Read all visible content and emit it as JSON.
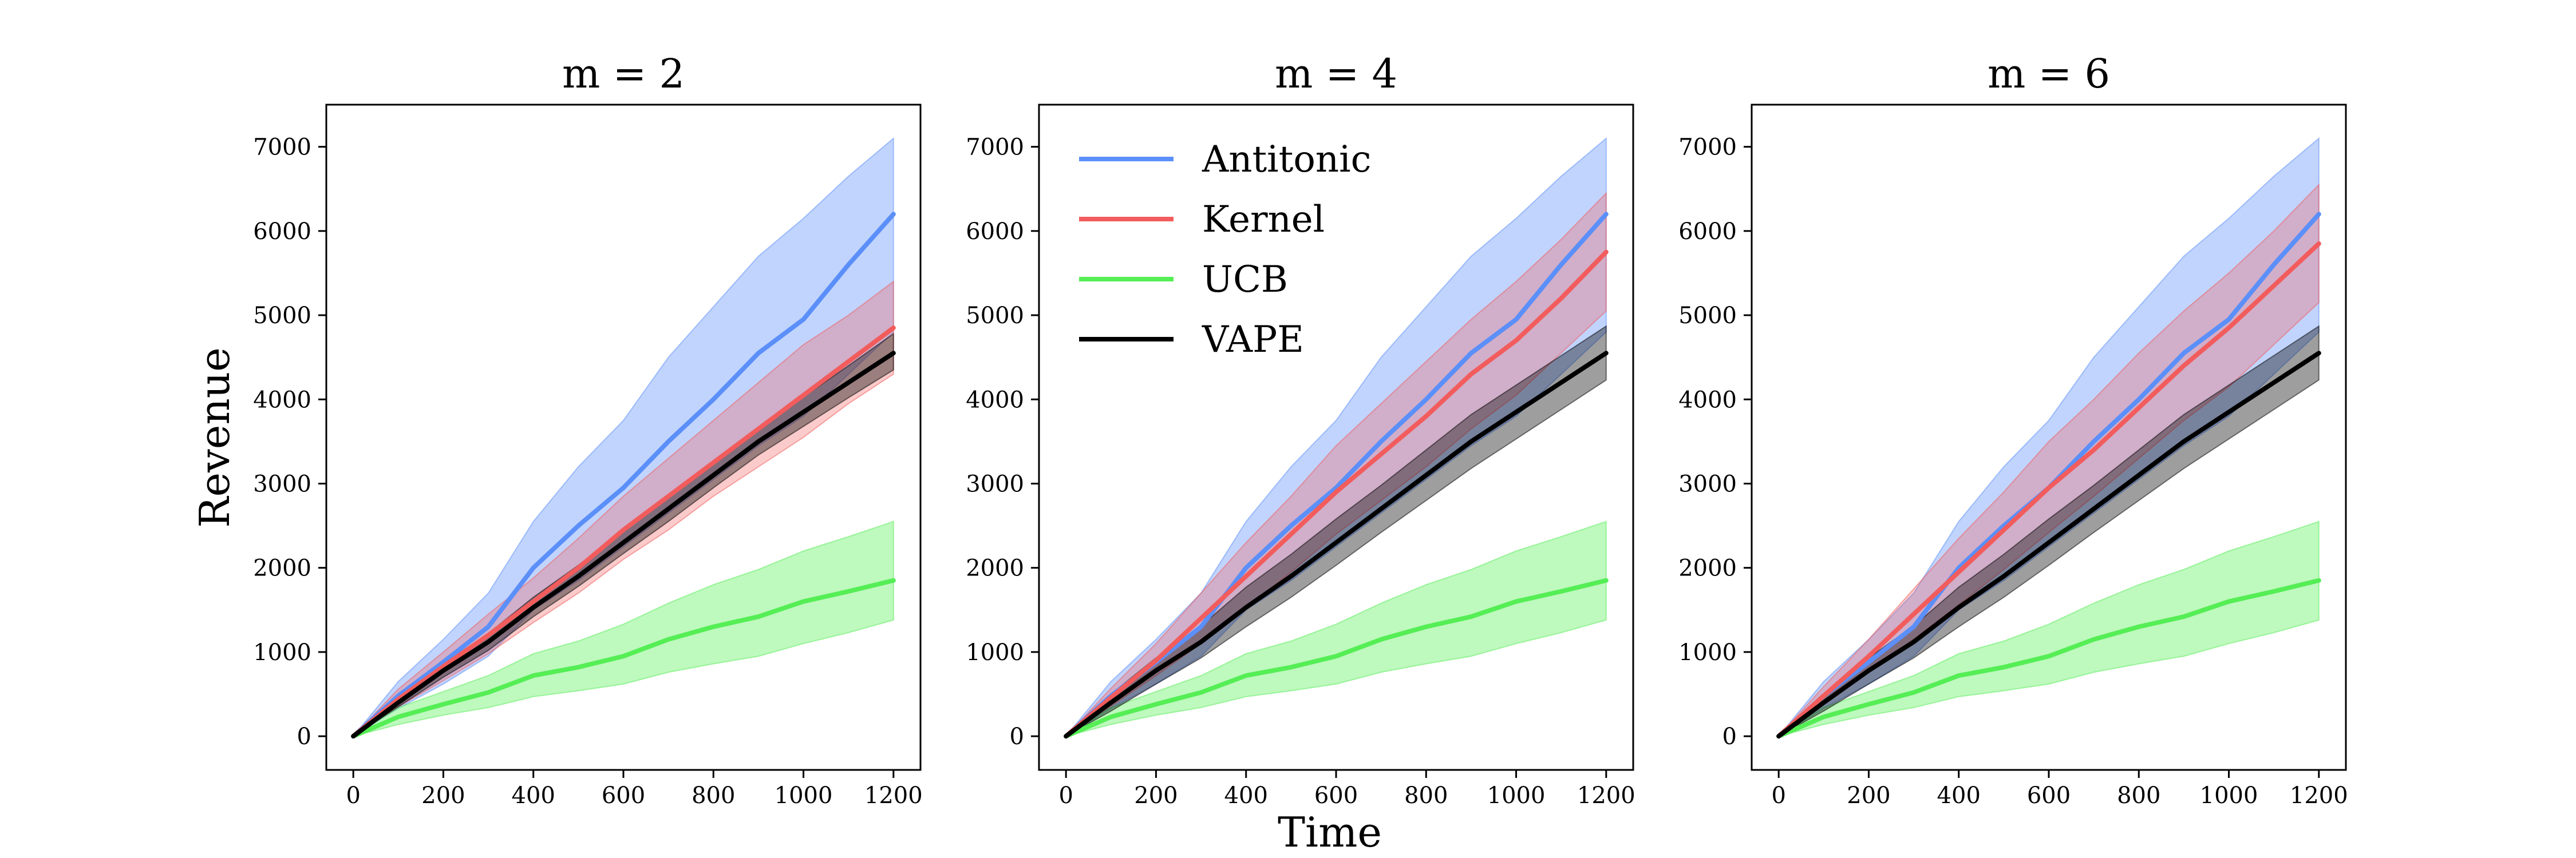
{
  "figure": {
    "xlabel": "Time",
    "ylabel": "Revenue"
  },
  "legend": {
    "position": "upper-left of middle panel",
    "entries": [
      {
        "name": "Antitonic",
        "color": "#5b8ff9"
      },
      {
        "name": "Kernel",
        "color": "#f25c5c"
      },
      {
        "name": "UCB",
        "color": "#55ee55"
      },
      {
        "name": "VAPE",
        "color": "#000000"
      }
    ]
  },
  "chart_data": [
    {
      "type": "line",
      "title": "m = 2",
      "xlabel": "Time",
      "ylabel": "Revenue",
      "xlim": [
        -60,
        1260
      ],
      "ylim": [
        -400,
        7500
      ],
      "xticks": [
        0,
        200,
        400,
        600,
        800,
        1000,
        1200
      ],
      "yticks": [
        0,
        1000,
        2000,
        3000,
        4000,
        5000,
        6000,
        7000
      ],
      "x": [
        0,
        100,
        200,
        300,
        400,
        500,
        600,
        700,
        800,
        900,
        1000,
        1100,
        1200
      ],
      "series": [
        {
          "name": "Antitonic",
          "color": "#5b8ff9",
          "values": [
            0,
            480,
            880,
            1300,
            2000,
            2500,
            2950,
            3500,
            4000,
            4550,
            4950,
            5600,
            6200
          ],
          "lower": [
            0,
            330,
            620,
            950,
            1500,
            1850,
            2250,
            2650,
            3050,
            3450,
            3800,
            4300,
            4800
          ],
          "upper": [
            0,
            650,
            1150,
            1700,
            2550,
            3200,
            3750,
            4500,
            5100,
            5700,
            6150,
            6650,
            7100
          ]
        },
        {
          "name": "Kernel",
          "color": "#f25c5c",
          "values": [
            0,
            440,
            830,
            1200,
            1600,
            2000,
            2450,
            2850,
            3250,
            3650,
            4050,
            4450,
            4850
          ],
          "lower": [
            0,
            350,
            660,
            980,
            1350,
            1700,
            2100,
            2450,
            2850,
            3200,
            3550,
            3950,
            4300
          ],
          "upper": [
            0,
            560,
            1000,
            1450,
            1880,
            2350,
            2850,
            3300,
            3750,
            4200,
            4650,
            5000,
            5400
          ]
        },
        {
          "name": "UCB",
          "color": "#55ee55",
          "values": [
            0,
            230,
            380,
            520,
            720,
            820,
            950,
            1150,
            1300,
            1420,
            1600,
            1720,
            1850
          ],
          "lower": [
            0,
            140,
            250,
            340,
            470,
            540,
            620,
            760,
            860,
            950,
            1100,
            1230,
            1380
          ],
          "upper": [
            0,
            340,
            530,
            720,
            980,
            1130,
            1330,
            1580,
            1800,
            1980,
            2200,
            2370,
            2550
          ]
        },
        {
          "name": "VAPE",
          "color": "#000000",
          "values": [
            0,
            400,
            780,
            1120,
            1530,
            1900,
            2300,
            2700,
            3100,
            3500,
            3850,
            4200,
            4550
          ],
          "lower": [
            0,
            350,
            700,
            1020,
            1420,
            1780,
            2170,
            2550,
            2950,
            3340,
            3680,
            4020,
            4350
          ],
          "upper": [
            0,
            450,
            860,
            1220,
            1650,
            2030,
            2440,
            2860,
            3260,
            3670,
            4030,
            4400,
            4780
          ]
        }
      ]
    },
    {
      "type": "line",
      "title": "m = 4",
      "xlabel": "Time",
      "ylabel": "Revenue",
      "xlim": [
        -60,
        1260
      ],
      "ylim": [
        -400,
        7500
      ],
      "xticks": [
        0,
        200,
        400,
        600,
        800,
        1000,
        1200
      ],
      "yticks": [
        0,
        1000,
        2000,
        3000,
        4000,
        5000,
        6000,
        7000
      ],
      "x": [
        0,
        100,
        200,
        300,
        400,
        500,
        600,
        700,
        800,
        900,
        1000,
        1100,
        1200
      ],
      "series": [
        {
          "name": "Antitonic",
          "color": "#5b8ff9",
          "values": [
            0,
            480,
            880,
            1300,
            2000,
            2500,
            2950,
            3500,
            4000,
            4550,
            4950,
            5600,
            6200
          ],
          "lower": [
            0,
            330,
            620,
            950,
            1500,
            1850,
            2250,
            2650,
            3050,
            3450,
            3800,
            4300,
            4800
          ],
          "upper": [
            0,
            650,
            1150,
            1700,
            2550,
            3200,
            3750,
            4500,
            5100,
            5700,
            6150,
            6650,
            7100
          ]
        },
        {
          "name": "Kernel",
          "color": "#f25c5c",
          "values": [
            0,
            460,
            900,
            1400,
            1900,
            2400,
            2900,
            3350,
            3800,
            4300,
            4700,
            5200,
            5750
          ],
          "lower": [
            0,
            360,
            720,
            1100,
            1520,
            1950,
            2400,
            2800,
            3200,
            3650,
            4050,
            4550,
            5050
          ],
          "upper": [
            0,
            570,
            1100,
            1700,
            2300,
            2850,
            3450,
            3950,
            4450,
            4950,
            5400,
            5900,
            6450
          ]
        },
        {
          "name": "UCB",
          "color": "#55ee55",
          "values": [
            0,
            230,
            380,
            520,
            720,
            820,
            950,
            1150,
            1300,
            1420,
            1600,
            1720,
            1850
          ],
          "lower": [
            0,
            140,
            250,
            340,
            470,
            540,
            620,
            760,
            860,
            950,
            1100,
            1230,
            1380
          ],
          "upper": [
            0,
            340,
            530,
            720,
            980,
            1130,
            1330,
            1580,
            1800,
            1980,
            2200,
            2370,
            2550
          ]
        },
        {
          "name": "VAPE",
          "color": "#000000",
          "values": [
            0,
            400,
            780,
            1120,
            1530,
            1900,
            2300,
            2700,
            3100,
            3500,
            3850,
            4200,
            4550
          ],
          "lower": [
            0,
            300,
            620,
            930,
            1300,
            1650,
            2030,
            2420,
            2800,
            3180,
            3530,
            3880,
            4230
          ],
          "upper": [
            0,
            500,
            930,
            1310,
            1770,
            2160,
            2580,
            2980,
            3400,
            3820,
            4170,
            4520,
            4870
          ]
        }
      ]
    },
    {
      "type": "line",
      "title": "m = 6",
      "xlabel": "Time",
      "ylabel": "Revenue",
      "xlim": [
        -60,
        1260
      ],
      "ylim": [
        -400,
        7500
      ],
      "xticks": [
        0,
        200,
        400,
        600,
        800,
        1000,
        1200
      ],
      "yticks": [
        0,
        1000,
        2000,
        3000,
        4000,
        5000,
        6000,
        7000
      ],
      "x": [
        0,
        100,
        200,
        300,
        400,
        500,
        600,
        700,
        800,
        900,
        1000,
        1100,
        1200
      ],
      "series": [
        {
          "name": "Antitonic",
          "color": "#5b8ff9",
          "values": [
            0,
            480,
            880,
            1300,
            2000,
            2500,
            2950,
            3500,
            4000,
            4550,
            4950,
            5600,
            6200
          ],
          "lower": [
            0,
            330,
            620,
            950,
            1500,
            1850,
            2250,
            2650,
            3050,
            3450,
            3800,
            4300,
            4800
          ],
          "upper": [
            0,
            650,
            1150,
            1700,
            2550,
            3200,
            3750,
            4500,
            5100,
            5700,
            6150,
            6650,
            7100
          ]
        },
        {
          "name": "Kernel",
          "color": "#f25c5c",
          "values": [
            0,
            480,
            950,
            1450,
            1950,
            2450,
            2950,
            3400,
            3900,
            4400,
            4850,
            5350,
            5850
          ],
          "lower": [
            0,
            380,
            760,
            1150,
            1560,
            1980,
            2420,
            2850,
            3300,
            3750,
            4150,
            4650,
            5150
          ],
          "upper": [
            0,
            590,
            1150,
            1750,
            2350,
            2900,
            3500,
            4000,
            4550,
            5050,
            5500,
            6000,
            6550
          ]
        },
        {
          "name": "UCB",
          "color": "#55ee55",
          "values": [
            0,
            230,
            380,
            520,
            720,
            820,
            950,
            1150,
            1300,
            1420,
            1600,
            1720,
            1850
          ],
          "lower": [
            0,
            140,
            250,
            340,
            470,
            540,
            620,
            760,
            860,
            950,
            1100,
            1230,
            1380
          ],
          "upper": [
            0,
            340,
            530,
            720,
            980,
            1130,
            1330,
            1580,
            1800,
            1980,
            2200,
            2370,
            2550
          ]
        },
        {
          "name": "VAPE",
          "color": "#000000",
          "values": [
            0,
            400,
            780,
            1120,
            1530,
            1900,
            2300,
            2700,
            3100,
            3500,
            3850,
            4200,
            4550
          ],
          "lower": [
            0,
            300,
            620,
            930,
            1300,
            1650,
            2030,
            2420,
            2800,
            3180,
            3530,
            3880,
            4230
          ],
          "upper": [
            0,
            500,
            930,
            1310,
            1770,
            2160,
            2580,
            2980,
            3400,
            3820,
            4170,
            4520,
            4870
          ]
        }
      ]
    }
  ]
}
